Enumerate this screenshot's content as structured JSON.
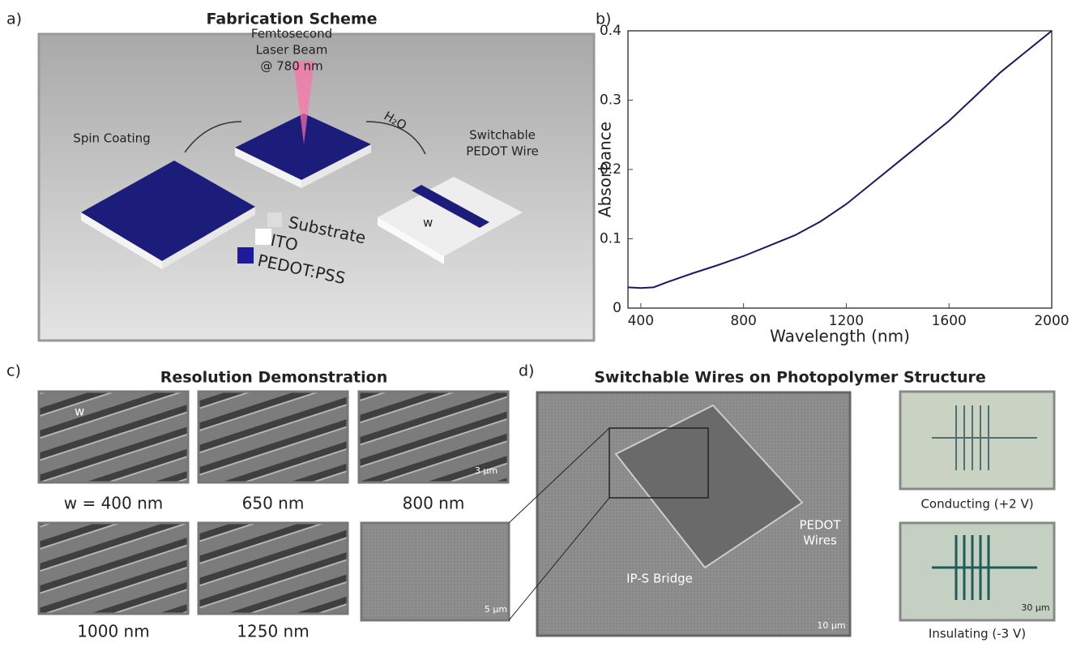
{
  "panel_a": {
    "letter": "a)",
    "title": "Fabrication Scheme",
    "laser_label": [
      "Femtosecond",
      "Laser Beam",
      "@ 780 nm"
    ],
    "spin_label": "Spin Coating",
    "water_label": "H₂O",
    "wire_label": [
      "Switchable",
      "PEDOT Wire"
    ],
    "width_label": "w",
    "legend": [
      "Substrate",
      "ITO",
      "PEDOT:PSS"
    ]
  },
  "chart_data": {
    "type": "line",
    "letter": "b)",
    "x_label": "Wavelength (nm)",
    "y_label": "Absorbance",
    "x": [
      350,
      400,
      450,
      500,
      600,
      700,
      800,
      900,
      1000,
      1100,
      1200,
      1300,
      1400,
      1500,
      1600,
      1700,
      1800,
      1900,
      2000
    ],
    "values": [
      0.03,
      0.029,
      0.03,
      0.037,
      0.05,
      0.062,
      0.075,
      0.09,
      0.105,
      0.125,
      0.15,
      0.18,
      0.21,
      0.24,
      0.27,
      0.305,
      0.34,
      0.37,
      0.4
    ],
    "color": "#1a1a5e",
    "xlim": [
      350,
      2000
    ],
    "xticks": [
      400,
      800,
      1200,
      1600,
      2000
    ],
    "ylim": [
      0,
      0.4
    ],
    "yticks": [
      0,
      0.1,
      0.2,
      0.3,
      0.4
    ]
  },
  "panel_c": {
    "letter": "c)",
    "title": "Resolution Demonstration",
    "width_label": "w",
    "scale_bar": "3 µm",
    "labels": [
      "w = 400 nm",
      "650 nm",
      "800 nm",
      "1000 nm",
      "1250 nm"
    ]
  },
  "panel_d": {
    "letter": "d)",
    "title": "Switchable Wires on Photopolymer Structure",
    "zoom_scale": "5 µm",
    "main_scale": "10 µm",
    "wires_label": [
      "PEDOT",
      "Wires"
    ],
    "bridge_label": "IP-S Bridge",
    "optical_scale": "30 µm",
    "states": [
      "Conducting (+2 V)",
      "Insulating (-3 V)"
    ]
  }
}
